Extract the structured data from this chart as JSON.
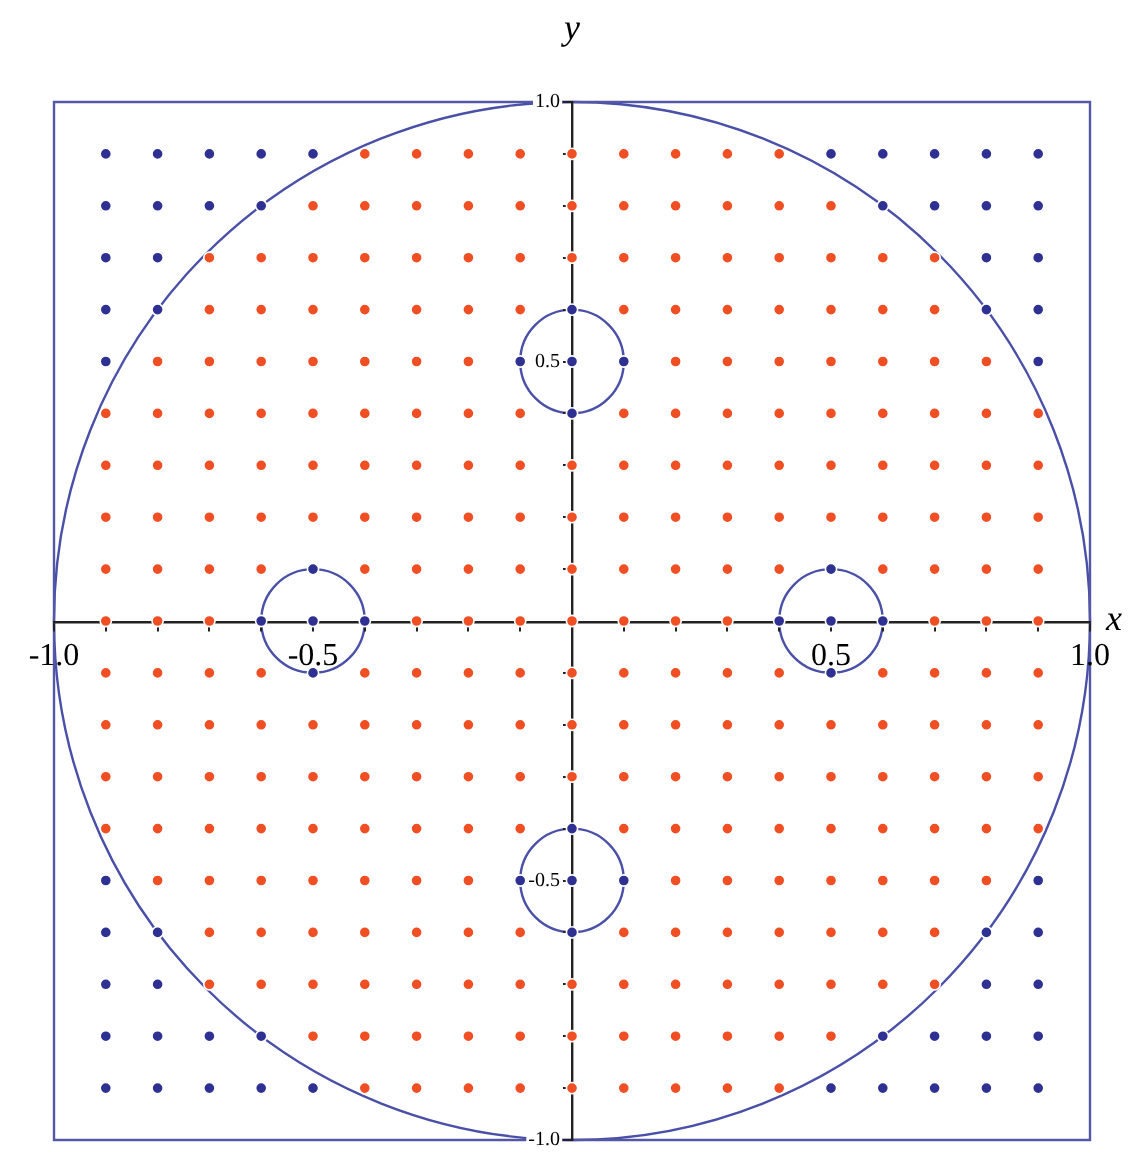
{
  "chart_data": {
    "type": "scatter",
    "xlabel": "x",
    "ylabel": "y",
    "xlim": [
      -1,
      1
    ],
    "ylim": [
      -1,
      1
    ],
    "marker": "circle",
    "xticks": [
      {
        "value": -1,
        "label": "-1.0"
      },
      {
        "value": -0.9,
        "label": null
      },
      {
        "value": -0.8,
        "label": null
      },
      {
        "value": -0.7,
        "label": null
      },
      {
        "value": -0.6,
        "label": null
      },
      {
        "value": -0.5,
        "label": "-0.5"
      },
      {
        "value": -0.4,
        "label": null
      },
      {
        "value": -0.3,
        "label": null
      },
      {
        "value": -0.2,
        "label": null
      },
      {
        "value": -0.1,
        "label": null
      },
      {
        "value": 0.1,
        "label": null
      },
      {
        "value": 0.2,
        "label": null
      },
      {
        "value": 0.3,
        "label": null
      },
      {
        "value": 0.4,
        "label": null
      },
      0.5,
      {
        "value": 0.6,
        "label": null
      },
      {
        "value": 0.7,
        "label": null
      },
      {
        "value": 0.8,
        "label": null
      },
      {
        "value": 0.9,
        "label": null
      },
      {
        "value": 1,
        "label": "1.0"
      }
    ],
    "yticks": [
      {
        "value": -1,
        "label": "-1.0"
      },
      {
        "value": -0.9,
        "label": null
      },
      {
        "value": -0.8,
        "label": null
      },
      {
        "value": -0.7,
        "label": null
      },
      {
        "value": -0.6,
        "label": null
      },
      {
        "value": -0.5,
        "label": "-0.5"
      },
      {
        "value": -0.4,
        "label": null
      },
      {
        "value": -0.3,
        "label": null
      },
      {
        "value": -0.2,
        "label": null
      },
      {
        "value": -0.1,
        "label": null
      },
      {
        "value": 0.1,
        "label": null
      },
      {
        "value": 0.2,
        "label": null
      },
      {
        "value": 0.3,
        "label": null
      },
      {
        "value": 0.4,
        "label": null
      },
      0.5,
      {
        "value": 0.6,
        "label": null
      },
      {
        "value": 0.7,
        "label": null
      },
      {
        "value": 0.8,
        "label": null
      },
      {
        "value": 0.9,
        "label": null
      },
      {
        "value": 1,
        "label": "1.0"
      }
    ],
    "series": [
      {
        "type": "scatter",
        "color": "#2e3192",
        "x": [
          -0.9,
          -0.8,
          -0.7,
          -0.6,
          -0.5,
          0.5,
          0.6,
          0.7,
          0.8,
          0.9,
          -0.9,
          -0.8,
          -0.7,
          -0.6,
          0.6,
          0.7,
          0.8,
          0.9,
          -0.9,
          -0.8,
          0.8,
          0.9,
          -0.9,
          -0.8,
          0,
          0.8,
          0.9,
          -0.9,
          -0.1,
          0,
          0.1,
          0.9,
          0
        ],
        "values": [
          0.9,
          0.9,
          0.9,
          0.9,
          0.9,
          0.9,
          0.9,
          0.9,
          0.9,
          0.9,
          0.8,
          0.8,
          0.8,
          0.8,
          0.8,
          0.8,
          0.8,
          0.8,
          0.7,
          0.7,
          0.7,
          0.7,
          0.6,
          0.6,
          0.6,
          0.6,
          0.6,
          0.5,
          0.5,
          0.5,
          0.5,
          0.5,
          0.4
        ]
      },
      {
        "type": "scatter",
        "color": "#2e3192",
        "x": [
          -0.5,
          0.5,
          -0.6,
          -0.5,
          -0.4,
          0.4,
          0.5,
          0.6,
          -0.5,
          0.5
        ],
        "values": [
          0.1,
          0.1,
          0,
          0,
          0,
          0,
          0,
          0,
          -0.1,
          -0.1
        ]
      },
      {
        "type": "scatter",
        "color": "#2e3192",
        "x": [
          -0.9,
          -0.8,
          -0.7,
          -0.6,
          -0.5,
          0.5,
          0.6,
          0.7,
          0.8,
          0.9,
          -0.9,
          -0.8,
          -0.7,
          -0.6,
          0.6,
          0.7,
          0.8,
          0.9,
          -0.9,
          -0.8,
          0.8,
          0.9,
          -0.9,
          -0.8,
          0,
          0.8,
          0.9,
          -0.9,
          -0.1,
          0,
          0.1,
          0.9,
          0
        ],
        "values": [
          -0.9,
          -0.9,
          -0.9,
          -0.9,
          -0.9,
          -0.9,
          -0.9,
          -0.9,
          -0.9,
          -0.9,
          -0.8,
          -0.8,
          -0.8,
          -0.8,
          -0.8,
          -0.8,
          -0.8,
          -0.8,
          -0.7,
          -0.7,
          -0.7,
          -0.7,
          -0.6,
          -0.6,
          -0.6,
          -0.6,
          -0.6,
          -0.5,
          -0.5,
          -0.5,
          -0.5,
          -0.5,
          -0.4
        ]
      },
      {
        "type": "scatter",
        "color": "#f04e23",
        "x": [
          -0.4,
          -0.3,
          -0.2,
          -0.1,
          0,
          0.1,
          0.2,
          0.3,
          0.4
        ],
        "values": [
          0.9,
          0.9,
          0.9,
          0.9,
          0.9,
          0.9,
          0.9,
          0.9,
          0.9
        ]
      },
      {
        "type": "scatter",
        "color": "#f04e23",
        "x": [
          -0.5,
          -0.4,
          -0.3,
          -0.2,
          -0.1,
          0,
          0.1,
          0.2,
          0.3,
          0.4,
          0.5
        ],
        "values": [
          0.8,
          0.8,
          0.8,
          0.8,
          0.8,
          0.8,
          0.8,
          0.8,
          0.8,
          0.8,
          0.8
        ]
      },
      {
        "type": "scatter",
        "color": "#f04e23",
        "x": [
          -0.7,
          -0.6,
          -0.5,
          -0.4,
          -0.3,
          -0.2,
          -0.1,
          0,
          0.1,
          0.2,
          0.3,
          0.4,
          0.5,
          0.6,
          0.7
        ],
        "values": [
          0.7,
          0.7,
          0.7,
          0.7,
          0.7,
          0.7,
          0.7,
          0.7,
          0.7,
          0.7,
          0.7,
          0.7,
          0.7,
          0.7,
          0.7
        ]
      },
      {
        "type": "scatter",
        "color": "#f04e23",
        "x": [
          -0.7,
          -0.6,
          -0.5,
          -0.4,
          -0.3,
          -0.2,
          -0.1,
          0.1,
          0.2,
          0.3,
          0.4,
          0.5,
          0.6,
          0.7
        ],
        "values": [
          0.6,
          0.6,
          0.6,
          0.6,
          0.6,
          0.6,
          0.6,
          0.6,
          0.6,
          0.6,
          0.6,
          0.6,
          0.6,
          0.6
        ]
      },
      {
        "type": "scatter",
        "color": "#f04e23",
        "x": [
          -0.8,
          -0.7,
          -0.6,
          -0.5,
          -0.4,
          -0.3,
          -0.2,
          0.2,
          0.3,
          0.4,
          0.5,
          0.6,
          0.7,
          0.8
        ],
        "values": [
          0.5,
          0.5,
          0.5,
          0.5,
          0.5,
          0.5,
          0.5,
          0.5,
          0.5,
          0.5,
          0.5,
          0.5,
          0.5,
          0.5
        ]
      },
      {
        "type": "scatter",
        "color": "#f04e23",
        "x": [
          -0.9,
          -0.8,
          -0.7,
          -0.6,
          -0.5,
          -0.4,
          -0.3,
          -0.2,
          -0.1,
          0.1,
          0.2,
          0.3,
          0.4,
          0.5,
          0.6,
          0.7,
          0.8,
          0.9
        ],
        "values": [
          0.4,
          0.4,
          0.4,
          0.4,
          0.4,
          0.4,
          0.4,
          0.4,
          0.4,
          0.4,
          0.4,
          0.4,
          0.4,
          0.4,
          0.4,
          0.4,
          0.4,
          0.4
        ]
      },
      {
        "type": "scatter",
        "color": "#f04e23",
        "x": [
          -0.9,
          -0.8,
          -0.7,
          -0.6,
          -0.5,
          -0.4,
          -0.3,
          -0.2,
          -0.1,
          0,
          0.1,
          0.2,
          0.3,
          0.4,
          0.5,
          0.6,
          0.7,
          0.8,
          0.9
        ],
        "values": [
          0.3,
          0.3,
          0.3,
          0.3,
          0.3,
          0.3,
          0.3,
          0.3,
          0.3,
          0.3,
          0.3,
          0.3,
          0.3,
          0.3,
          0.3,
          0.3,
          0.3,
          0.3,
          0.3
        ]
      },
      {
        "type": "scatter",
        "color": "#f04e23",
        "x": [
          -0.9,
          -0.8,
          -0.7,
          -0.6,
          -0.5,
          -0.4,
          -0.3,
          -0.2,
          -0.1,
          0,
          0.1,
          0.2,
          0.3,
          0.4,
          0.5,
          0.6,
          0.7,
          0.8,
          0.9
        ],
        "values": [
          0.2,
          0.2,
          0.2,
          0.2,
          0.2,
          0.2,
          0.2,
          0.2,
          0.2,
          0.2,
          0.2,
          0.2,
          0.2,
          0.2,
          0.2,
          0.2,
          0.2,
          0.2,
          0.2
        ]
      },
      {
        "type": "scatter",
        "color": "#f04e23",
        "x": [
          -0.9,
          -0.8,
          -0.7,
          -0.6,
          -0.4,
          -0.3,
          -0.2,
          -0.1,
          0,
          0.1,
          0.2,
          0.3,
          0.4,
          0.6,
          0.7,
          0.8,
          0.9
        ],
        "values": [
          0.1,
          0.1,
          0.1,
          0.1,
          0.1,
          0.1,
          0.1,
          0.1,
          0.1,
          0.1,
          0.1,
          0.1,
          0.1,
          0.1,
          0.1,
          0.1,
          0.1
        ]
      },
      {
        "type": "scatter",
        "color": "#f04e23",
        "x": [
          -0.9,
          -0.8,
          -0.7,
          -0.3,
          -0.2,
          -0.1,
          0,
          0.1,
          0.2,
          0.3,
          0.7,
          0.8,
          0.9
        ],
        "values": [
          0,
          0,
          0,
          0,
          0,
          0,
          0,
          0,
          0,
          0,
          0,
          0,
          0
        ]
      },
      {
        "type": "scatter",
        "color": "#f04e23",
        "x": [
          -0.9,
          -0.8,
          -0.7,
          -0.6,
          -0.4,
          -0.3,
          -0.2,
          -0.1,
          0,
          0.1,
          0.2,
          0.3,
          0.4,
          0.6,
          0.7,
          0.8,
          0.9
        ],
        "values": [
          -0.1,
          -0.1,
          -0.1,
          -0.1,
          -0.1,
          -0.1,
          -0.1,
          -0.1,
          -0.1,
          -0.1,
          -0.1,
          -0.1,
          -0.1,
          -0.1,
          -0.1,
          -0.1,
          -0.1
        ]
      },
      {
        "type": "scatter",
        "color": "#f04e23",
        "x": [
          -0.9,
          -0.8,
          -0.7,
          -0.6,
          -0.5,
          -0.4,
          -0.3,
          -0.2,
          -0.1,
          0,
          0.1,
          0.2,
          0.3,
          0.4,
          0.5,
          0.6,
          0.7,
          0.8,
          0.9
        ],
        "values": [
          -0.2,
          -0.2,
          -0.2,
          -0.2,
          -0.2,
          -0.2,
          -0.2,
          -0.2,
          -0.2,
          -0.2,
          -0.2,
          -0.2,
          -0.2,
          -0.2,
          -0.2,
          -0.2,
          -0.2,
          -0.2,
          -0.2
        ]
      },
      {
        "type": "scatter",
        "color": "#f04e23",
        "x": [
          -0.9,
          -0.8,
          -0.7,
          -0.6,
          -0.5,
          -0.4,
          -0.3,
          -0.2,
          -0.1,
          0,
          0.1,
          0.2,
          0.3,
          0.4,
          0.5,
          0.6,
          0.7,
          0.8,
          0.9
        ],
        "values": [
          -0.3,
          -0.3,
          -0.3,
          -0.3,
          -0.3,
          -0.3,
          -0.3,
          -0.3,
          -0.3,
          -0.3,
          -0.3,
          -0.3,
          -0.3,
          -0.3,
          -0.3,
          -0.3,
          -0.3,
          -0.3,
          -0.3
        ]
      },
      {
        "type": "scatter",
        "color": "#f04e23",
        "x": [
          -0.9,
          -0.8,
          -0.7,
          -0.6,
          -0.5,
          -0.4,
          -0.3,
          -0.2,
          -0.1,
          0.1,
          0.2,
          0.3,
          0.4,
          0.5,
          0.6,
          0.7,
          0.8,
          0.9
        ],
        "values": [
          -0.4,
          -0.4,
          -0.4,
          -0.4,
          -0.4,
          -0.4,
          -0.4,
          -0.4,
          -0.4,
          -0.4,
          -0.4,
          -0.4,
          -0.4,
          -0.4,
          -0.4,
          -0.4,
          -0.4,
          -0.4
        ]
      },
      {
        "type": "scatter",
        "color": "#f04e23",
        "x": [
          -0.8,
          -0.7,
          -0.6,
          -0.5,
          -0.4,
          -0.3,
          -0.2,
          0.2,
          0.3,
          0.4,
          0.5,
          0.6,
          0.7,
          0.8
        ],
        "values": [
          -0.5,
          -0.5,
          -0.5,
          -0.5,
          -0.5,
          -0.5,
          -0.5,
          -0.5,
          -0.5,
          -0.5,
          -0.5,
          -0.5,
          -0.5,
          -0.5
        ]
      },
      {
        "type": "scatter",
        "color": "#f04e23",
        "x": [
          -0.7,
          -0.6,
          -0.5,
          -0.4,
          -0.3,
          -0.2,
          -0.1,
          0.1,
          0.2,
          0.3,
          0.4,
          0.5,
          0.6,
          0.7
        ],
        "values": [
          -0.6,
          -0.6,
          -0.6,
          -0.6,
          -0.6,
          -0.6,
          -0.6,
          -0.6,
          -0.6,
          -0.6,
          -0.6,
          -0.6,
          -0.6,
          -0.6
        ]
      },
      {
        "type": "scatter",
        "color": "#f04e23",
        "x": [
          -0.7,
          -0.6,
          -0.5,
          -0.4,
          -0.3,
          -0.2,
          -0.1,
          0,
          0.1,
          0.2,
          0.3,
          0.4,
          0.5,
          0.6,
          0.7
        ],
        "values": [
          -0.7,
          -0.7,
          -0.7,
          -0.7,
          -0.7,
          -0.7,
          -0.7,
          -0.7,
          -0.7,
          -0.7,
          -0.7,
          -0.7,
          -0.7,
          -0.7,
          -0.7
        ]
      },
      {
        "type": "scatter",
        "color": "#f04e23",
        "x": [
          -0.5,
          -0.4,
          -0.3,
          -0.2,
          -0.1,
          0,
          0.1,
          0.2,
          0.3,
          0.4,
          0.5
        ],
        "values": [
          -0.8,
          -0.8,
          -0.8,
          -0.8,
          -0.8,
          -0.8,
          -0.8,
          -0.8,
          -0.8,
          -0.8,
          -0.8
        ]
      },
      {
        "type": "scatter",
        "color": "#f04e23",
        "x": [
          -0.4,
          -0.3,
          -0.2,
          -0.1,
          0,
          0.1,
          0.2,
          0.3,
          0.4
        ],
        "values": [
          -0.9,
          -0.9,
          -0.9,
          -0.9,
          -0.9,
          -0.9,
          -0.9,
          -0.9,
          -0.9
        ]
      }
    ]
  }
}
